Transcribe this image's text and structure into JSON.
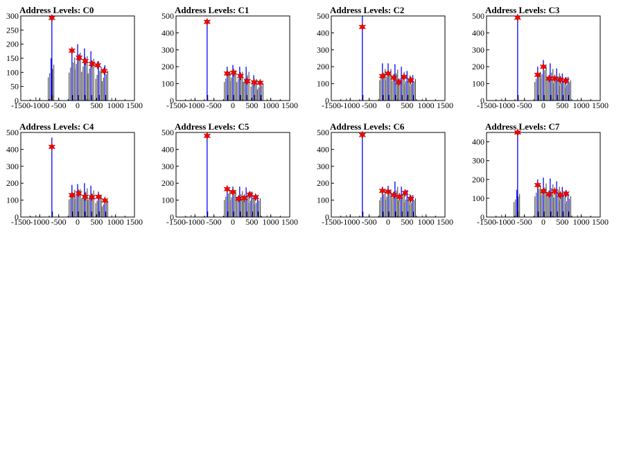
{
  "chart_data": [
    {
      "type": "bar",
      "title": "Address Levels: C0",
      "xlim": [
        -1500,
        1500
      ],
      "ylim": [
        0,
        300
      ],
      "xticks": [
        "-1500",
        "-1000",
        "-500",
        "0",
        "500",
        "1000",
        "1500"
      ],
      "yticks": [
        "0",
        "50",
        "100",
        "150",
        "200",
        "250",
        "300"
      ],
      "series": [
        {
          "color": "#0000ff",
          "peaks": [
            [
              -680,
              300
            ],
            [
              -700,
              150
            ],
            [
              -150,
              180
            ],
            [
              0,
              200
            ],
            [
              180,
              185
            ],
            [
              350,
              175
            ],
            [
              550,
              140
            ],
            [
              720,
              125
            ]
          ],
          "markers": [
            [
              -680,
              293
            ],
            [
              -150,
              177
            ],
            [
              40,
              152
            ],
            [
              200,
              140
            ],
            [
              380,
              130
            ],
            [
              530,
              125
            ],
            [
              700,
              105
            ]
          ]
        }
      ]
    },
    {
      "type": "bar",
      "title": "Address Levels: C1",
      "xlim": [
        -1500,
        1500
      ],
      "ylim": [
        0,
        500
      ],
      "xticks": [
        "-1500",
        "-1000",
        "-500",
        "0",
        "500",
        "1000",
        "1500"
      ],
      "yticks": [
        "0",
        "100",
        "200",
        "300",
        "400",
        "500"
      ],
      "series": [
        {
          "color": "#0000ff",
          "peaks": [
            [
              -680,
              480
            ],
            [
              -150,
              200
            ],
            [
              0,
              210
            ],
            [
              180,
              200
            ],
            [
              350,
              200
            ],
            [
              550,
              150
            ],
            [
              720,
              120
            ]
          ],
          "markers": [
            [
              -680,
              465
            ],
            [
              -150,
              160
            ],
            [
              20,
              165
            ],
            [
              200,
              145
            ],
            [
              380,
              115
            ],
            [
              560,
              108
            ],
            [
              720,
              105
            ]
          ]
        }
      ]
    },
    {
      "type": "bar",
      "title": "Address Levels: C2",
      "xlim": [
        -1500,
        1500
      ],
      "ylim": [
        0,
        500
      ],
      "xticks": [
        "-1500",
        "-1000",
        "-500",
        "0",
        "500",
        "1000",
        "1500"
      ],
      "yticks": [
        "0",
        "100",
        "200",
        "300",
        "400",
        "500"
      ],
      "series": [
        {
          "color": "#0000ff",
          "peaks": [
            [
              -680,
              500
            ],
            [
              -150,
              220
            ],
            [
              0,
              220
            ],
            [
              180,
              215
            ],
            [
              350,
              200
            ],
            [
              500,
              175
            ],
            [
              650,
              150
            ]
          ],
          "markers": [
            [
              -680,
              435
            ],
            [
              -150,
              145
            ],
            [
              0,
              160
            ],
            [
              150,
              135
            ],
            [
              280,
              108
            ],
            [
              420,
              140
            ],
            [
              600,
              120
            ]
          ]
        }
      ]
    },
    {
      "type": "bar",
      "title": "Address Levels: C3",
      "xlim": [
        -1500,
        1500
      ],
      "ylim": [
        0,
        500
      ],
      "xticks": [
        "-1500",
        "-1000",
        "-500",
        "0",
        "500",
        "1000",
        "1500"
      ],
      "yticks": [
        "0",
        "100",
        "200",
        "300",
        "400",
        "500"
      ],
      "series": [
        {
          "color": "#0000ff",
          "peaks": [
            [
              -680,
              500
            ],
            [
              -150,
              200
            ],
            [
              0,
              240
            ],
            [
              180,
              220
            ],
            [
              350,
              190
            ],
            [
              500,
              160
            ],
            [
              650,
              140
            ]
          ],
          "markers": [
            [
              -680,
              490
            ],
            [
              -150,
              152
            ],
            [
              0,
              200
            ],
            [
              150,
              130
            ],
            [
              300,
              130
            ],
            [
              450,
              123
            ],
            [
              600,
              117
            ]
          ]
        }
      ]
    },
    {
      "type": "bar",
      "title": "Address Levels: C4",
      "xlim": [
        -1500,
        1500
      ],
      "ylim": [
        0,
        500
      ],
      "xticks": [
        "-1500",
        "-1000",
        "-500",
        "0",
        "500",
        "1000",
        "1500"
      ],
      "yticks": [
        "0",
        "100",
        "200",
        "300",
        "400",
        "500"
      ],
      "series": [
        {
          "color": "#0000ff",
          "peaks": [
            [
              -680,
              470
            ],
            [
              -150,
              190
            ],
            [
              0,
              195
            ],
            [
              180,
              200
            ],
            [
              350,
              185
            ],
            [
              550,
              150
            ],
            [
              720,
              115
            ]
          ],
          "markers": [
            [
              -680,
              415
            ],
            [
              -150,
              130
            ],
            [
              30,
              140
            ],
            [
              200,
              120
            ],
            [
              380,
              117
            ],
            [
              550,
              120
            ],
            [
              720,
              98
            ]
          ]
        }
      ]
    },
    {
      "type": "bar",
      "title": "Address Levels: C5",
      "xlim": [
        -1500,
        1500
      ],
      "ylim": [
        0,
        500
      ],
      "xticks": [
        "-1500",
        "-1000",
        "-500",
        "0",
        "500",
        "1000",
        "1500"
      ],
      "yticks": [
        "0",
        "100",
        "200",
        "300",
        "400",
        "500"
      ],
      "series": [
        {
          "color": "#0000ff",
          "peaks": [
            [
              -680,
              500
            ],
            [
              -150,
              185
            ],
            [
              0,
              180
            ],
            [
              180,
              180
            ],
            [
              350,
              175
            ],
            [
              500,
              150
            ],
            [
              650,
              130
            ]
          ],
          "markers": [
            [
              -680,
              480
            ],
            [
              -150,
              165
            ],
            [
              0,
              148
            ],
            [
              150,
              108
            ],
            [
              300,
              112
            ],
            [
              450,
              132
            ],
            [
              600,
              118
            ]
          ]
        }
      ]
    },
    {
      "type": "bar",
      "title": "Address Levels: C6",
      "xlim": [
        -1500,
        1500
      ],
      "ylim": [
        0,
        500
      ],
      "xticks": [
        "-1500",
        "-1000",
        "-500",
        "0",
        "500",
        "1000",
        "1500"
      ],
      "yticks": [
        "0",
        "100",
        "200",
        "300",
        "400",
        "500"
      ],
      "series": [
        {
          "color": "#0000ff",
          "peaks": [
            [
              -680,
              500
            ],
            [
              -150,
              180
            ],
            [
              0,
              185
            ],
            [
              180,
              210
            ],
            [
              350,
              180
            ],
            [
              500,
              160
            ],
            [
              650,
              130
            ]
          ],
          "markers": [
            [
              -680,
              485
            ],
            [
              -150,
              155
            ],
            [
              0,
              150
            ],
            [
              150,
              130
            ],
            [
              300,
              120
            ],
            [
              450,
              143
            ],
            [
              600,
              108
            ]
          ]
        }
      ]
    },
    {
      "type": "bar",
      "title": "Address Levels: C7",
      "xlim": [
        -1500,
        1500
      ],
      "ylim": [
        0,
        450
      ],
      "xticks": [
        "-1500",
        "-1000",
        "-500",
        "0",
        "500",
        "1000",
        "1500"
      ],
      "yticks": [
        "0",
        "100",
        "200",
        "300",
        "400"
      ],
      "series": [
        {
          "color": "#0000ff",
          "peaks": [
            [
              -680,
              470
            ],
            [
              -700,
              145
            ],
            [
              -150,
              200
            ],
            [
              0,
              210
            ],
            [
              180,
              205
            ],
            [
              350,
              190
            ],
            [
              500,
              160
            ],
            [
              650,
              130
            ]
          ],
          "markers": [
            [
              -680,
              450
            ],
            [
              -150,
              170
            ],
            [
              0,
              138
            ],
            [
              150,
              122
            ],
            [
              300,
              137
            ],
            [
              450,
              117
            ],
            [
              600,
              125
            ]
          ]
        }
      ]
    }
  ]
}
